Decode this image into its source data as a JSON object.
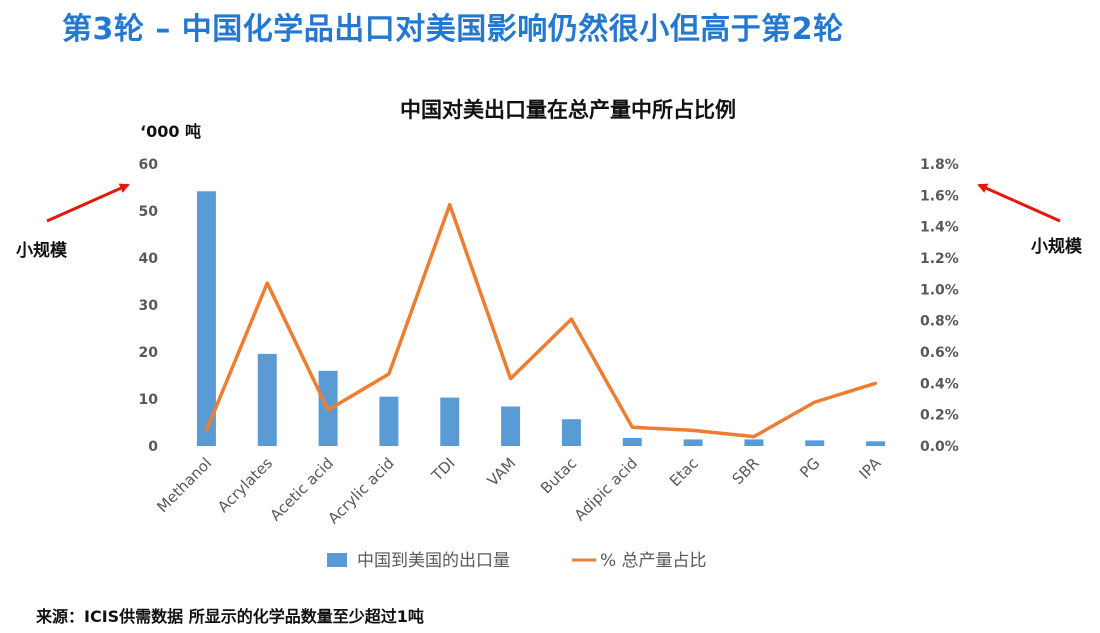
{
  "slide_title": "第3轮 – 中国化学品出口对美国影响仍然很小但高于第2轮",
  "annotations": {
    "left_label": "小规模",
    "right_label": "小规模"
  },
  "source_note": "来源：ICIS供需数据   所显示的化学品数量至少超过1吨",
  "colors": {
    "bar": "#5b9bd5",
    "line": "#ed7d31",
    "title": "#2478d0",
    "arrow": "#e3170a"
  },
  "chart_data": {
    "type": "bar",
    "title": "中国对美出口量在总产量中所占比例",
    "y_unit_label": "‘000  吨",
    "categories": [
      "Methanol",
      "Acrylates",
      "Acetic acid",
      "Acrylic acid",
      "TDI",
      "VAM",
      "Butac",
      "Adipic acid",
      "Etac",
      "SBR",
      "PG",
      "IPA"
    ],
    "series": [
      {
        "name": "中国到美国的出口量",
        "type": "bar",
        "axis": "left",
        "values": [
          54.2,
          19.6,
          16.0,
          10.5,
          10.3,
          8.4,
          5.7,
          1.7,
          1.4,
          1.4,
          1.2,
          1.0
        ]
      },
      {
        "name": "%  总产量占比",
        "type": "line",
        "axis": "right",
        "values": [
          0.1,
          1.04,
          0.23,
          0.46,
          1.54,
          0.43,
          0.81,
          0.12,
          0.1,
          0.06,
          0.28,
          0.4
        ]
      }
    ],
    "y_left": {
      "min": 0,
      "max": 60,
      "ticks": [
        "0",
        "10",
        "20",
        "30",
        "40",
        "50",
        "60"
      ]
    },
    "y_right": {
      "min": 0,
      "max": 1.8,
      "ticks": [
        "0.0%",
        "0.2%",
        "0.4%",
        "0.6%",
        "0.8%",
        "1.0%",
        "1.2%",
        "1.4%",
        "1.6%",
        "1.8%"
      ]
    },
    "grid": false,
    "legend_position": "bottom"
  }
}
